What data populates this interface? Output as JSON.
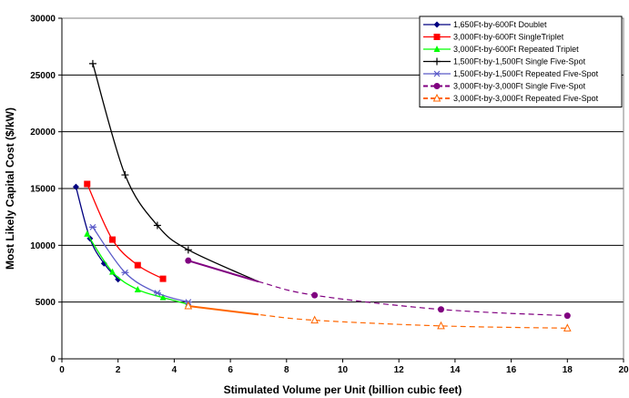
{
  "chart_data": {
    "type": "line",
    "title": "",
    "xlabel": "Stimulated Volume per Unit (billion cubic feet)",
    "ylabel": "Most Likely Capital Cost ($/kW)",
    "xlim": [
      0,
      20
    ],
    "ylim": [
      0,
      30000
    ],
    "xticks": [
      "0",
      "2",
      "4",
      "6",
      "8",
      "10",
      "12",
      "14",
      "16",
      "18",
      "20"
    ],
    "yticks": [
      "0",
      "5000",
      "10000",
      "15000",
      "20000",
      "25000",
      "30000"
    ],
    "grid": "horizontal",
    "legend_position": "top-right",
    "series": [
      {
        "name": "1,650Ft-by-600Ft Doublet",
        "color": "#000080",
        "marker": "diamond",
        "dash": "solid",
        "x": [
          0.5,
          1.0,
          1.5,
          2.0
        ],
        "y": [
          15150,
          10600,
          8400,
          7000
        ]
      },
      {
        "name": "3,000Ft-by-600Ft SingleTriplet",
        "color": "#ff0000",
        "marker": "square",
        "dash": "solid",
        "x": [
          0.9,
          1.8,
          2.7,
          3.6
        ],
        "y": [
          15400,
          10500,
          8250,
          7050
        ]
      },
      {
        "name": "3,000Ft-by-600Ft Repeated Triplet",
        "color": "#00ff00",
        "marker": "triangle",
        "dash": "solid",
        "x": [
          0.9,
          1.8,
          2.7,
          3.6,
          4.5
        ],
        "y": [
          11000,
          7650,
          6100,
          5400,
          4800
        ]
      },
      {
        "name": "1,500Ft-by-1,500Ft Single Five-Spot",
        "color": "#000000",
        "marker": "plus",
        "dash": "solid",
        "x": [
          1.1,
          2.25,
          3.4,
          4.5,
          7.0
        ],
        "y": [
          26000,
          16200,
          11750,
          9600,
          6800
        ]
      },
      {
        "name": "1,500Ft-by-1,500Ft Repeated Five-Spot",
        "color": "#5a5ac8",
        "marker": "star",
        "dash": "solid",
        "x": [
          1.1,
          2.25,
          3.4,
          4.5
        ],
        "y": [
          11600,
          7600,
          5800,
          5000
        ]
      },
      {
        "name": "3,000Ft-by-3,000Ft Single Five-Spot",
        "color": "#800080",
        "marker": "circle",
        "dash": "dashed",
        "x": [
          4.5,
          7.0,
          9.0,
          13.5,
          18.0
        ],
        "y": [
          8650,
          6800,
          5600,
          4350,
          3800
        ]
      },
      {
        "name": "3,000Ft-by-3,000Ft Repeated Five-Spot",
        "color": "#ff6600",
        "marker": "open-triangle",
        "dash": "dashed",
        "x": [
          4.5,
          7.0,
          9.0,
          13.5,
          18.0
        ],
        "y": [
          4650,
          3900,
          3400,
          2900,
          2700
        ]
      }
    ]
  }
}
